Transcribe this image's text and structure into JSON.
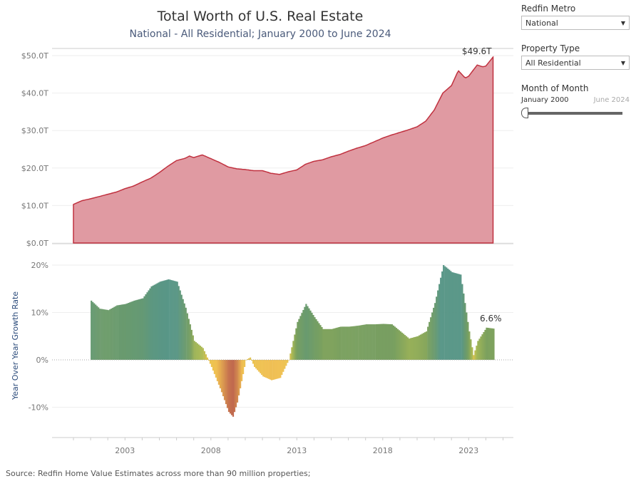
{
  "header": {
    "title": "Total Worth of U.S. Real Estate",
    "subtitle": "National - All Residential; January 2000 to June 2024"
  },
  "filters": {
    "metro": {
      "label": "Redfin Metro",
      "value": "National"
    },
    "property_type": {
      "label": "Property Type",
      "value": "All Residential"
    },
    "month": {
      "label": "Month of Month",
      "start": "January 2000",
      "end": "June 2024",
      "position": 0
    }
  },
  "source": "Source: Redfin Home Value Estimates across more than 90 million properties;",
  "chart_data": [
    {
      "type": "area",
      "color": "#c0313f",
      "fill": "#e09aa2",
      "y_ticks": [
        "$0.0T",
        "$10.0T",
        "$20.0T",
        "$30.0T",
        "$40.0T",
        "$50.0T"
      ],
      "ylim": [
        0,
        50
      ],
      "annotation": "$49.6T",
      "points": [
        [
          2000.0,
          10.3
        ],
        [
          2000.5,
          11.3
        ],
        [
          2001.0,
          11.8
        ],
        [
          2001.5,
          12.4
        ],
        [
          2002.0,
          13.0
        ],
        [
          2002.5,
          13.6
        ],
        [
          2003.0,
          14.5
        ],
        [
          2003.5,
          15.2
        ],
        [
          2004.0,
          16.3
        ],
        [
          2004.5,
          17.3
        ],
        [
          2005.0,
          18.8
        ],
        [
          2005.5,
          20.5
        ],
        [
          2006.0,
          22.0
        ],
        [
          2006.5,
          22.6
        ],
        [
          2006.75,
          23.2
        ],
        [
          2007.0,
          22.8
        ],
        [
          2007.5,
          23.5
        ],
        [
          2008.0,
          22.5
        ],
        [
          2008.5,
          21.5
        ],
        [
          2009.0,
          20.3
        ],
        [
          2009.5,
          19.8
        ],
        [
          2010.0,
          19.6
        ],
        [
          2010.5,
          19.3
        ],
        [
          2011.0,
          19.3
        ],
        [
          2011.5,
          18.6
        ],
        [
          2012.0,
          18.3
        ],
        [
          2012.5,
          19.0
        ],
        [
          2013.0,
          19.5
        ],
        [
          2013.5,
          21.0
        ],
        [
          2014.0,
          21.8
        ],
        [
          2014.5,
          22.2
        ],
        [
          2015.0,
          23.0
        ],
        [
          2015.5,
          23.6
        ],
        [
          2016.0,
          24.5
        ],
        [
          2016.5,
          25.3
        ],
        [
          2017.0,
          26.0
        ],
        [
          2017.5,
          27.0
        ],
        [
          2018.0,
          28.0
        ],
        [
          2018.5,
          28.8
        ],
        [
          2019.0,
          29.5
        ],
        [
          2019.5,
          30.2
        ],
        [
          2020.0,
          31.0
        ],
        [
          2020.5,
          32.5
        ],
        [
          2021.0,
          35.5
        ],
        [
          2021.5,
          40.0
        ],
        [
          2022.0,
          42.0
        ],
        [
          2022.4,
          46.0
        ],
        [
          2022.8,
          44.0
        ],
        [
          2023.0,
          44.5
        ],
        [
          2023.5,
          47.5
        ],
        [
          2023.8,
          47.0
        ],
        [
          2024.0,
          47.2
        ],
        [
          2024.42,
          49.6
        ]
      ]
    },
    {
      "type": "bar",
      "ylabel": "Year Over Year Growth Rate",
      "y_ticks": [
        "-10%",
        "0%",
        "10%",
        "20%"
      ],
      "ylim": [
        -15,
        22
      ],
      "x_ticks": [
        "2003",
        "2008",
        "2013",
        "2018",
        "2023"
      ],
      "annotation": "6.6%",
      "points": [
        [
          2001.0,
          12.5
        ],
        [
          2001.5,
          10.8
        ],
        [
          2002.0,
          10.5
        ],
        [
          2002.5,
          11.5
        ],
        [
          2003.0,
          11.8
        ],
        [
          2003.5,
          12.5
        ],
        [
          2004.0,
          13.0
        ],
        [
          2004.5,
          15.5
        ],
        [
          2005.0,
          16.5
        ],
        [
          2005.5,
          17.0
        ],
        [
          2006.0,
          16.5
        ],
        [
          2006.5,
          11.0
        ],
        [
          2007.0,
          4.0
        ],
        [
          2007.5,
          2.5
        ],
        [
          2008.0,
          -1.5
        ],
        [
          2008.5,
          -6.0
        ],
        [
          2009.0,
          -11.0
        ],
        [
          2009.25,
          -12.0
        ],
        [
          2009.5,
          -9.0
        ],
        [
          2010.0,
          0.0
        ],
        [
          2010.25,
          0.5
        ],
        [
          2010.5,
          -1.5
        ],
        [
          2011.0,
          -3.5
        ],
        [
          2011.5,
          -4.3
        ],
        [
          2012.0,
          -3.8
        ],
        [
          2012.5,
          0.0
        ],
        [
          2013.0,
          8.0
        ],
        [
          2013.5,
          11.8
        ],
        [
          2014.0,
          9.0
        ],
        [
          2014.5,
          6.5
        ],
        [
          2015.0,
          6.5
        ],
        [
          2015.5,
          7.0
        ],
        [
          2016.0,
          7.0
        ],
        [
          2016.5,
          7.2
        ],
        [
          2017.0,
          7.5
        ],
        [
          2017.5,
          7.5
        ],
        [
          2018.0,
          7.6
        ],
        [
          2018.5,
          7.5
        ],
        [
          2019.0,
          6.0
        ],
        [
          2019.5,
          4.5
        ],
        [
          2020.0,
          5.0
        ],
        [
          2020.5,
          6.0
        ],
        [
          2021.0,
          12.0
        ],
        [
          2021.5,
          20.0
        ],
        [
          2022.0,
          18.5
        ],
        [
          2022.5,
          18.0
        ],
        [
          2023.0,
          6.0
        ],
        [
          2023.25,
          1.0
        ],
        [
          2023.5,
          4.0
        ],
        [
          2024.0,
          6.8
        ],
        [
          2024.42,
          6.6
        ]
      ]
    }
  ]
}
